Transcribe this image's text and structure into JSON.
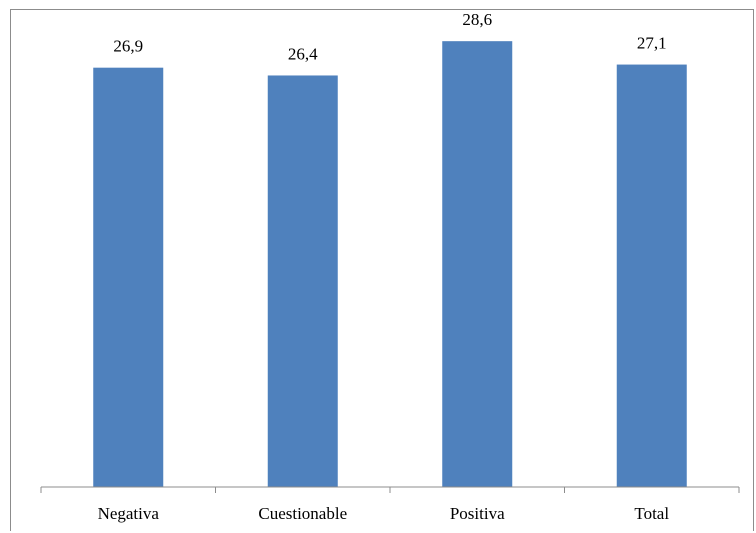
{
  "chart_data": {
    "type": "bar",
    "categories": [
      "Negativa",
      "Cuestionable",
      "Positiva",
      "Total"
    ],
    "values": [
      26.9,
      26.4,
      28.6,
      27.1
    ],
    "value_labels": [
      "26,9",
      "26,4",
      "28,6",
      "27,1"
    ],
    "title": "",
    "xlabel": "",
    "ylabel": "",
    "ylim": [
      0,
      30.6
    ],
    "grid": false,
    "legend": "none",
    "bar_color": "#4f81bd"
  }
}
